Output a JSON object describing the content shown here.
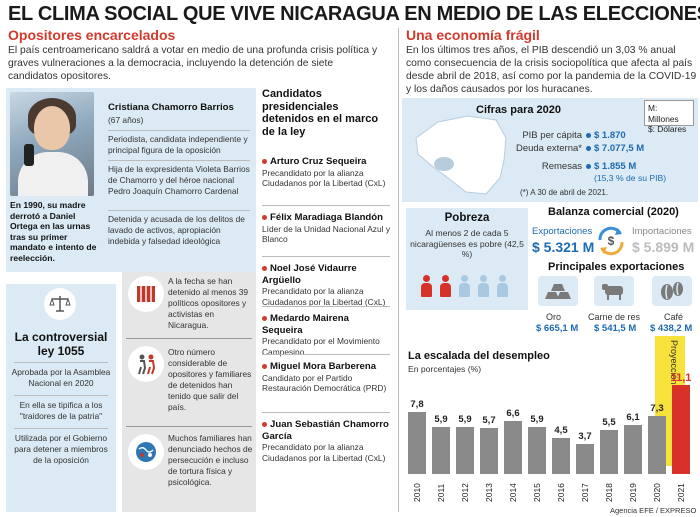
{
  "title": "EL CLIMA SOCIAL QUE VIVE NICARAGUA EN MEDIO DE LAS ELECCIONES",
  "left": {
    "heading": "Opositores encarcelados",
    "intro": "El país centroamericano saldrá a votar en medio de una profunda crisis política y graves vulneraciones a la democracia, incluyendo la detención de siete candidatos opositores.",
    "profile": {
      "name": "Cristiana Chamorro Barrios",
      "age": "(67 años)",
      "p1": "Periodista, candidata independiente y principal figura de la oposición",
      "p2": "Hija de la expresidenta Violeta Barrios de Chamorro y del héroe nacional Pedro Joaquín Chamorro Cardenal",
      "p3": "Detenida y acusada de los delitos de lavado de activos, apropiación indebida y falsedad ideológica",
      "caption": "En 1990, su madre derrotó a Daniel Ortega en las urnas tras su primer mandato e intento de reelección."
    },
    "law": {
      "title": "La controversial ley 1055",
      "p1": "Aprobada por la Asamblea Nacional en 2020",
      "p2": "En ella se tipifica a los \"traidores de la patria\"",
      "p3": "Utilizada por el Gobierno para detener a miembros de la oposición"
    },
    "facts": [
      "A la fecha se han detenido al menos 39 políticos opositores y activistas en Nicaragua.",
      "Otro número considerable de opositores y familiares de detenidos han tenido que salir del país.",
      "Muchos familiares han denunciado hechos de persecución e incluso de tortura física y psicológica."
    ],
    "candidates_heading": "Candidatos presidenciales detenidos en el marco de la ley",
    "candidates": [
      {
        "name": "Arturo Cruz Sequeira",
        "desc": "Precandidato por la alianza Ciudadanos por la Libertad (CxL)"
      },
      {
        "name": "Félix Maradiaga Blandón",
        "desc": "Líder de la Unidad Nacional Azul y Blanco"
      },
      {
        "name": "Noel José Vidaurre Argüello",
        "desc": "Precandidato por la alianza Ciudadanos por la Libertad (CxL)"
      },
      {
        "name": "Medardo Mairena Sequeira",
        "desc": "Precandidato por el Movimiento Campesino"
      },
      {
        "name": "Miguel Mora Barberena",
        "desc": "Candidato por el Partido Restauración Democrática (PRD)"
      },
      {
        "name": "Juan Sebastián Chamorro García",
        "desc": "Precandidato por la alianza Ciudadanos por la Libertad (CxL)"
      }
    ]
  },
  "right": {
    "heading": "Una economía frágil",
    "intro": "En los últimos tres años, el PIB descendió un 3,03 % anual como consecuencia de la crisis sociopolítica que afecta al país desde abril de 2018, así como por la pandemia de la COVID-19 y los daños causados por los huracanes.",
    "cifras": {
      "title": "Cifras para 2020",
      "legend1": "M: Millones",
      "legend2": "$: Dólares",
      "k1": "PIB per cápita",
      "v1": "$ 1.870",
      "k2": "Deuda externa*",
      "v2": "$ 7.077,5 M",
      "k3": "Remesas",
      "v3": "$ 1.855 M",
      "v3b": "(15,3 % de su PIB)",
      "note": "(*) A 30 de abril de 2021."
    },
    "pobreza": {
      "title": "Pobreza",
      "text": "Al menos 2 de cada 5 nicaragüenses es pobre (42,5 %)",
      "poor_fraction": 0.4
    },
    "balanza": {
      "title": "Balanza comercial (2020)",
      "exp_label": "Exportaciones",
      "exp_value": "$ 5.321 M",
      "imp_label": "Importaciones",
      "imp_value": "$ 5.899 M"
    },
    "principales": {
      "title": "Principales exportaciones",
      "items": [
        {
          "label": "Oro",
          "value": "$ 665,1 M"
        },
        {
          "label": "Carne de res",
          "value": "$ 541,5 M"
        },
        {
          "label": "Café",
          "value": "$ 438,2 M"
        }
      ]
    },
    "credit": "Agencia EFE / EXPRESO"
  },
  "chart_data": {
    "type": "bar",
    "title": "La escalada del desempleo",
    "subtitle": "En porcentajes (%)",
    "categories": [
      "2010",
      "2011",
      "2012",
      "2013",
      "2014",
      "2015",
      "2016",
      "2017",
      "2018",
      "2019",
      "2020",
      "2021"
    ],
    "values": [
      7.8,
      5.9,
      5.9,
      5.7,
      6.6,
      5.9,
      4.5,
      3.7,
      5.5,
      6.1,
      7.3,
      11.1
    ],
    "labels": [
      "7,8",
      "5,9",
      "5,9",
      "5,7",
      "6,6",
      "5,9",
      "4,5",
      "3,7",
      "5,5",
      "6,1",
      "7,3",
      "11,1"
    ],
    "highlight_index": 11,
    "highlight_label": "Proyección",
    "ylim": [
      0,
      12
    ],
    "grid": false
  }
}
